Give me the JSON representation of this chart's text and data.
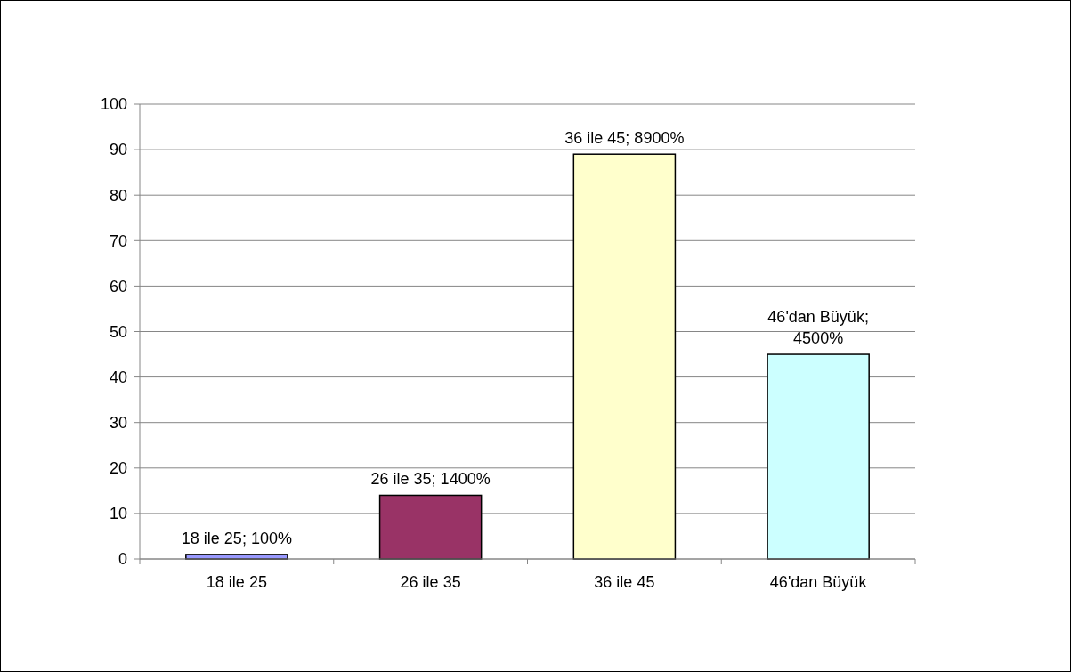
{
  "chart_data": {
    "type": "bar",
    "categories": [
      "18 ile 25",
      "26 ile 35",
      "36 ile 45",
      "46'dan Büyük"
    ],
    "values": [
      1,
      14,
      89,
      45
    ],
    "colors": [
      "#9999ff",
      "#993366",
      "#ffffcc",
      "#ccffff"
    ],
    "value_labels": [
      "18 ile 25; 100%",
      "26 ile 35; 1400%",
      "36 ile 45; 8900%",
      "46'dan Büyük; 4500%"
    ],
    "ylim": [
      0,
      100
    ],
    "yticks": [
      0,
      10,
      20,
      30,
      40,
      50,
      60,
      70,
      80,
      90,
      100
    ],
    "grid": "y"
  }
}
